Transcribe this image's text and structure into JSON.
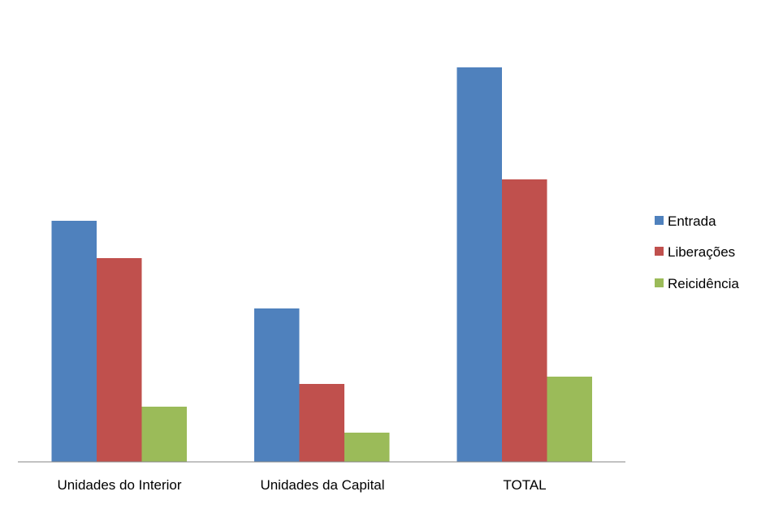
{
  "chart_data": {
    "type": "bar",
    "title": "",
    "xlabel": "",
    "ylabel": "",
    "categories": [
      "Unidades do Interior",
      "Unidades da Capital",
      "TOTAL"
    ],
    "series": [
      {
        "name": "Entrada",
        "color": "#4F81BD",
        "values": [
          297,
          189,
          486
        ]
      },
      {
        "name": "Liberações",
        "color": "#C0504D",
        "values": [
          251,
          96,
          348
        ]
      },
      {
        "name": "Reicidência",
        "color": "#9BBB59",
        "values": [
          68,
          36,
          105
        ]
      }
    ],
    "ylim": [
      0,
      500
    ],
    "grid": false,
    "legend_position": "right"
  }
}
